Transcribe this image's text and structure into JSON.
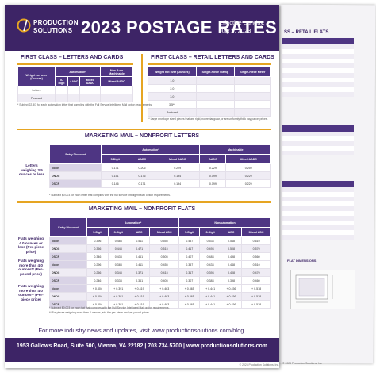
{
  "header": {
    "logo_line1": "PRODUCTION",
    "logo_line2": "SOLUTIONS",
    "title": "2023 POSTAGE RATES",
    "effective_line1": "Effective Sunday,",
    "effective_line2": "July 9, 2023"
  },
  "sections": {
    "fc_letters": "FIRST CLASS – LETTERS AND CARDS",
    "fc_retail": "FIRST CLASS – RETAIL LETTERS AND CARDS",
    "mm_letters": "MARKETING MAIL – NONPROFIT LETTERS",
    "mm_flats": "MARKETING MAIL – NONPROFIT FLATS"
  },
  "fc_letters_table": {
    "group_headers": [
      "Automation*",
      "Non-Auto Machinable"
    ],
    "headers": [
      "Weight not over (Ounces)",
      "5-Digit",
      "AADC",
      "Mixed AADC",
      "Mixed AADC"
    ],
    "rows": [
      [
        "Letters",
        "",
        "",
        "",
        ""
      ],
      [
        "Postcard",
        "",
        "",
        "",
        ""
      ]
    ]
  },
  "fc_retail_table": {
    "headers": [
      "Weight not over (Ounces)",
      "Single-Piece Stamp",
      "Single-Piece Meter"
    ],
    "rows": [
      [
        "1.0",
        "",
        ""
      ],
      [
        "2.0",
        "",
        ""
      ],
      [
        "3.0",
        "",
        ""
      ],
      [
        "3.5**",
        "",
        ""
      ],
      [
        "Postcard",
        "",
        ""
      ]
    ]
  },
  "mm_letters_table": {
    "group_headers": [
      "Automation*",
      "Machinable"
    ],
    "headers": [
      "Entry Discount",
      "5-Digit",
      "AADC",
      "Mixed AADC",
      "AADC",
      "Mixed AADC"
    ],
    "row_label": "Letters weighing 3.5 ounces or less",
    "rows": [
      [
        "None",
        "0.171",
        "0.206",
        "0.229",
        "0.229",
        "0.259"
      ],
      [
        "DNDC",
        "0.151",
        "0.176",
        "0.194",
        "0.199",
        "0.229"
      ],
      [
        "DSCF",
        "0.146",
        "0.171",
        "0.194",
        "0.199",
        "0.229"
      ]
    ]
  },
  "mm_flats_table": {
    "group_headers": [
      "Automation*",
      "Nonautomation"
    ],
    "headers": [
      "Entry Discount",
      "5-Digit",
      "3-Digit",
      "ADC",
      "Mixed ADC",
      "5-Digit",
      "3-Digit",
      "ADC",
      "Mixed ADC"
    ],
    "groups": [
      {
        "label": "Flats weighing 4.0 ounces or less (Per-piece price)",
        "rows": [
          [
            "None",
            "0.396",
            "0.483",
            "0.511",
            "0.555",
            "0.457",
            "0.533",
            "0.548",
            "0.610"
          ],
          [
            "DNDC",
            "0.356",
            "0.443",
            "0.471",
            "0.515",
            "0.417",
            "0.493",
            "0.508",
            "0.570"
          ],
          [
            "DSCF",
            "0.346",
            "0.433",
            "0.461",
            "0.505",
            "0.407",
            "0.483",
            "0.498",
            "0.560"
          ]
        ]
      },
      {
        "label": "Flats weighing more than 4.0 ounces** (Per-pound price)",
        "rows": [
          [
            "None",
            "0.296",
            "0.383",
            "0.411",
            "0.455",
            "0.357",
            "0.433",
            "0.448",
            "0.510"
          ],
          [
            "DNDC",
            "0.256",
            "0.343",
            "0.371",
            "0.415",
            "0.317",
            "0.393",
            "0.408",
            "0.470"
          ],
          [
            "DSCF",
            "0.246",
            "0.333",
            "0.361",
            "0.405",
            "0.307",
            "0.383",
            "0.398",
            "0.460"
          ]
        ]
      },
      {
        "label": "Flats weighing more than 4.0 ounces** (Per-piece price)",
        "rows": [
          [
            "None",
            "+ 0.304",
            "+ 0.391",
            "+ 0.419",
            "+ 0.463",
            "+ 0.365",
            "+ 0.441",
            "+ 0.456",
            "+ 0.518"
          ],
          [
            "DNDC",
            "+ 0.304",
            "+ 0.391",
            "+ 0.419",
            "+ 0.463",
            "+ 0.365",
            "+ 0.441",
            "+ 0.456",
            "+ 0.518"
          ],
          [
            "DSCF",
            "+ 0.304",
            "+ 0.391",
            "+ 0.419",
            "+ 0.463",
            "+ 0.365",
            "+ 0.441",
            "+ 0.456",
            "+ 0.518"
          ]
        ]
      }
    ]
  },
  "notes": {
    "fc_letters": "* Subject 22.3/3 for each automation letter that complies with the Full Service Intelligent Mail option requirements.",
    "fc_retail": "** Large envelope sized pieces that are rigid, nonrectangular, or are uniformly thick pay parcel prices.",
    "mm_letters": "* Subtract $0.003 for each letter that complies with the full service Intelligent Mail option requirements.",
    "mm_flats_1": "* Subtract $0.003 for each flat that complies with the Full Service Intelligent Mail option requirements.",
    "mm_flats_2": "** For pieces weighing more than 4 ounces, add the per-piece and per-pound prices."
  },
  "footer": {
    "tagline": "For more industry news and updates, visit www.productionsolutions.com/blog.",
    "address": "1953 Gallows Road, Suite 500, Vienna, VA 22182 | 703.734.5700 | www.productionsolutions.com",
    "copyright": "© 2023 Production Solutions, Inc."
  },
  "back_sheet": {
    "title": "SS – RETAIL FLATS",
    "dims_title": "FLAT DIMENSIONS",
    "copyright": "© 2023 Production Solutions, Inc."
  },
  "colors": {
    "brand_purple": "#3d2466",
    "table_header": "#4e3583",
    "accent_gold": "#e6a522"
  }
}
